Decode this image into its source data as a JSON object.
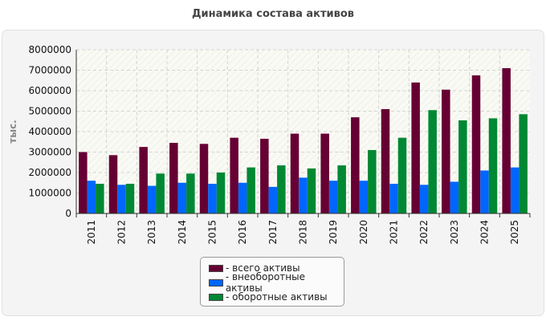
{
  "chart_data": {
    "type": "bar",
    "title": "Динамика состава активов",
    "ylabel": "тыс.",
    "xlabel": "",
    "ylim": [
      0,
      8000000
    ],
    "yticks": [
      "0",
      "1000000",
      "2000000",
      "3000000",
      "4000000",
      "5000000",
      "6000000",
      "7000000",
      "8000000"
    ],
    "categories": [
      "2011",
      "2012",
      "2013",
      "2014",
      "2015",
      "2016",
      "2017",
      "2018",
      "2019",
      "2020",
      "2021",
      "2022",
      "2023",
      "2024",
      "2025"
    ],
    "series": [
      {
        "name": "- всего активы",
        "color": "#660033",
        "values": [
          3000000,
          2850000,
          3250000,
          3450000,
          3400000,
          3700000,
          3650000,
          3900000,
          3900000,
          4700000,
          5100000,
          6400000,
          6050000,
          6750000,
          7100000
        ]
      },
      {
        "name": "- внеоборотные активы",
        "color": "#0066ff",
        "values": [
          1600000,
          1400000,
          1350000,
          1500000,
          1450000,
          1500000,
          1300000,
          1750000,
          1600000,
          1600000,
          1450000,
          1400000,
          1550000,
          2100000,
          2250000
        ]
      },
      {
        "name": "- оборотные активы",
        "color": "#008833",
        "values": [
          1450000,
          1450000,
          1950000,
          1950000,
          2000000,
          2250000,
          2350000,
          2200000,
          2350000,
          3100000,
          3700000,
          5050000,
          4550000,
          4650000,
          4850000
        ]
      }
    ],
    "grid": true,
    "legend_position": "bottom-center"
  }
}
